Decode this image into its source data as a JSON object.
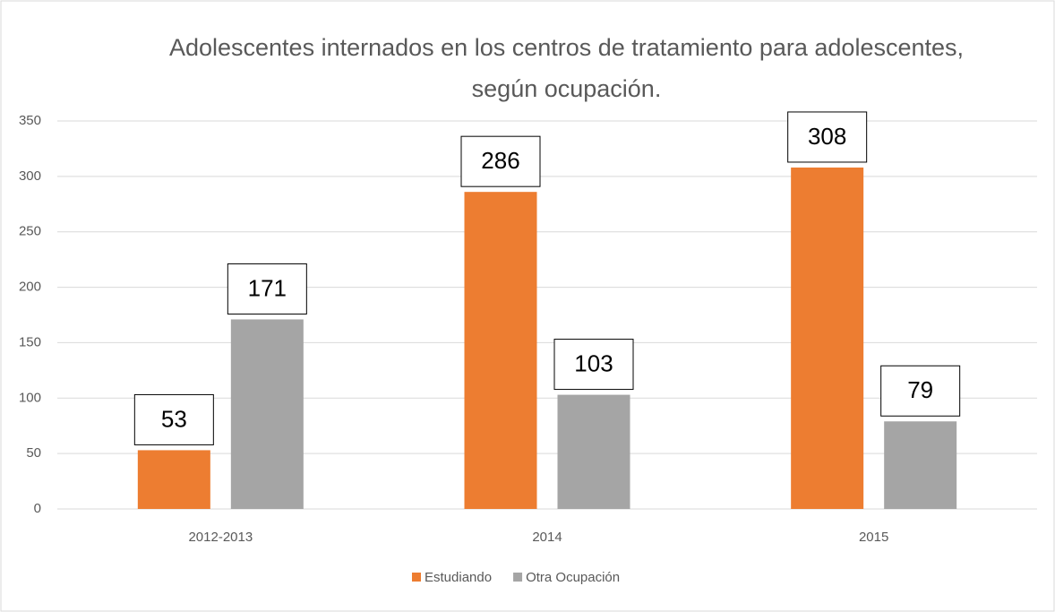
{
  "chart_data": {
    "type": "bar",
    "title": "Adolescentes internados en los centros de tratamiento para adolescentes, según ocupación.",
    "categories": [
      "2012-2013",
      "2014",
      "2015"
    ],
    "series": [
      {
        "name": "Estudiando",
        "color": "#ed7d31",
        "values": [
          53,
          286,
          308
        ]
      },
      {
        "name": "Otra Ocupación",
        "color": "#a5a5a5",
        "values": [
          171,
          103,
          79
        ]
      }
    ],
    "ylim": [
      0,
      350
    ],
    "yticks": [
      0,
      50,
      100,
      150,
      200,
      250,
      300,
      350
    ],
    "grid": true,
    "legend": "bottom"
  }
}
